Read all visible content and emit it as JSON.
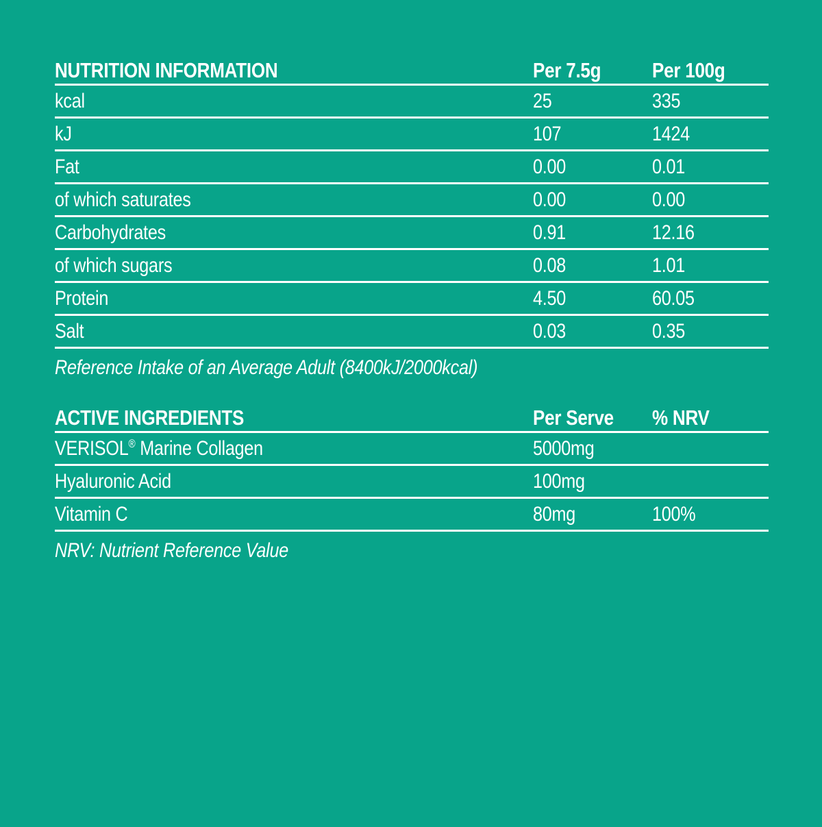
{
  "page": {
    "background_color": "#08a48a",
    "text_color": "#ffffff",
    "rule_color": "#ffffff"
  },
  "nutrition_table": {
    "title": "NUTRITION INFORMATION",
    "col_per_serving": "Per 7.5g",
    "col_per_100g": "Per 100g",
    "rows": [
      {
        "label": "kcal",
        "per_serving": "25",
        "per_100g": "335"
      },
      {
        "label": "kJ",
        "per_serving": "107",
        "per_100g": "1424"
      },
      {
        "label": "Fat",
        "per_serving": "0.00",
        "per_100g": "0.01"
      },
      {
        "label": "of which saturates",
        "per_serving": "0.00",
        "per_100g": "0.00"
      },
      {
        "label": "Carbohydrates",
        "per_serving": "0.91",
        "per_100g": "12.16"
      },
      {
        "label": "of which sugars",
        "per_serving": "0.08",
        "per_100g": "1.01"
      },
      {
        "label": "Protein",
        "per_serving": "4.50",
        "per_100g": "60.05"
      },
      {
        "label": "Salt",
        "per_serving": "0.03",
        "per_100g": "0.35"
      }
    ],
    "footnote": "Reference Intake of an Average Adult (8400kJ/2000kcal)"
  },
  "active_ingredients_table": {
    "title": "ACTIVE INGREDIENTS",
    "col_per_serve": "Per Serve",
    "col_nrv": "% NRV",
    "rows": [
      {
        "label_brand": "VERISOL",
        "label_reg": "®",
        "label_rest": " Marine Collagen",
        "per_serve": "5000mg",
        "nrv": ""
      },
      {
        "label": "Hyaluronic Acid",
        "per_serve": "100mg",
        "nrv": ""
      },
      {
        "label": "Vitamin C",
        "per_serve": "80mg",
        "nrv": "100%"
      }
    ],
    "footnote": "NRV: Nutrient Reference Value"
  }
}
